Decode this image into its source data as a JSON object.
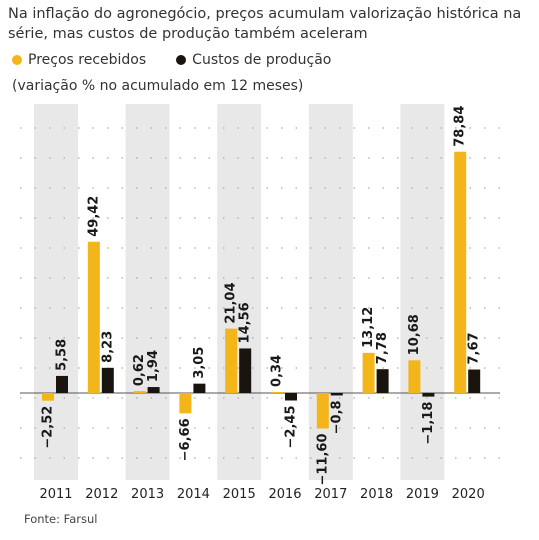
{
  "title": "Na inflação do agronegócio, preços acumulam valorização histórica na série, mas custos de produção também aceleram",
  "legend": {
    "received": "Preços recebidos",
    "costs": "Custos de produção"
  },
  "subtitle": "(variação % no acumulado em 12 meses)",
  "source": "Fonte: Farsul",
  "colors": {
    "received": "#f2b51a",
    "costs": "#1a140f",
    "band": "#e8e8e8"
  },
  "chart_data": {
    "type": "bar",
    "categories": [
      "2011",
      "2012",
      "2013",
      "2014",
      "2015",
      "2016",
      "2017",
      "2018",
      "2019",
      "2020"
    ],
    "series": [
      {
        "name": "Preços recebidos",
        "values": [
          -2.52,
          49.42,
          0.62,
          -6.66,
          21.04,
          0.34,
          -11.6,
          13.12,
          10.68,
          78.84
        ]
      },
      {
        "name": "Custos de produção",
        "values": [
          5.58,
          8.23,
          1.94,
          3.05,
          14.56,
          -2.45,
          -0.8,
          7.78,
          -1.18,
          7.67
        ]
      }
    ],
    "labels": {
      "Preços recebidos": [
        "−2,52",
        "49,42",
        "0,62",
        "−6,66",
        "21,04",
        "0,34",
        "−11,60",
        "13,12",
        "10,68",
        "78,84"
      ],
      "Custos de produção": [
        "5,58",
        "8,23",
        "1,94",
        "3,05",
        "14,56",
        "−2,45",
        "−0,8",
        "7,78",
        "−1,18",
        "7,67"
      ]
    },
    "grid": true
  }
}
